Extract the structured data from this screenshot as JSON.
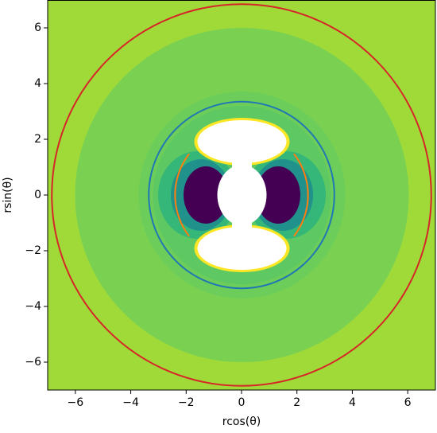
{
  "chart_data": {
    "type": "contour",
    "xlabel": "rcos(θ)",
    "ylabel": "rsin(θ)",
    "xlim": [
      -7,
      7
    ],
    "ylim": [
      -7,
      7
    ],
    "xticks": [
      {
        "value": -6,
        "label": "−6"
      },
      {
        "value": -4,
        "label": "−4"
      },
      {
        "value": -2,
        "label": "−2"
      },
      0,
      2,
      4,
      6
    ],
    "yticks": [
      {
        "value": -6,
        "label": "−6"
      },
      {
        "value": -4,
        "label": "−4"
      },
      {
        "value": -2,
        "label": "−2"
      },
      0,
      2,
      4,
      6
    ],
    "circles": [
      {
        "color": "#d62728",
        "r": 6.85
      },
      {
        "color": "#1f77b4",
        "r": 3.35
      }
    ],
    "arcs": [
      {
        "color": "#ff7f0e",
        "r": 2.4,
        "angles": [
          -38,
          38
        ]
      },
      {
        "color": "#ff7f0e",
        "r": 2.4,
        "angles": [
          142,
          218
        ]
      }
    ]
  }
}
